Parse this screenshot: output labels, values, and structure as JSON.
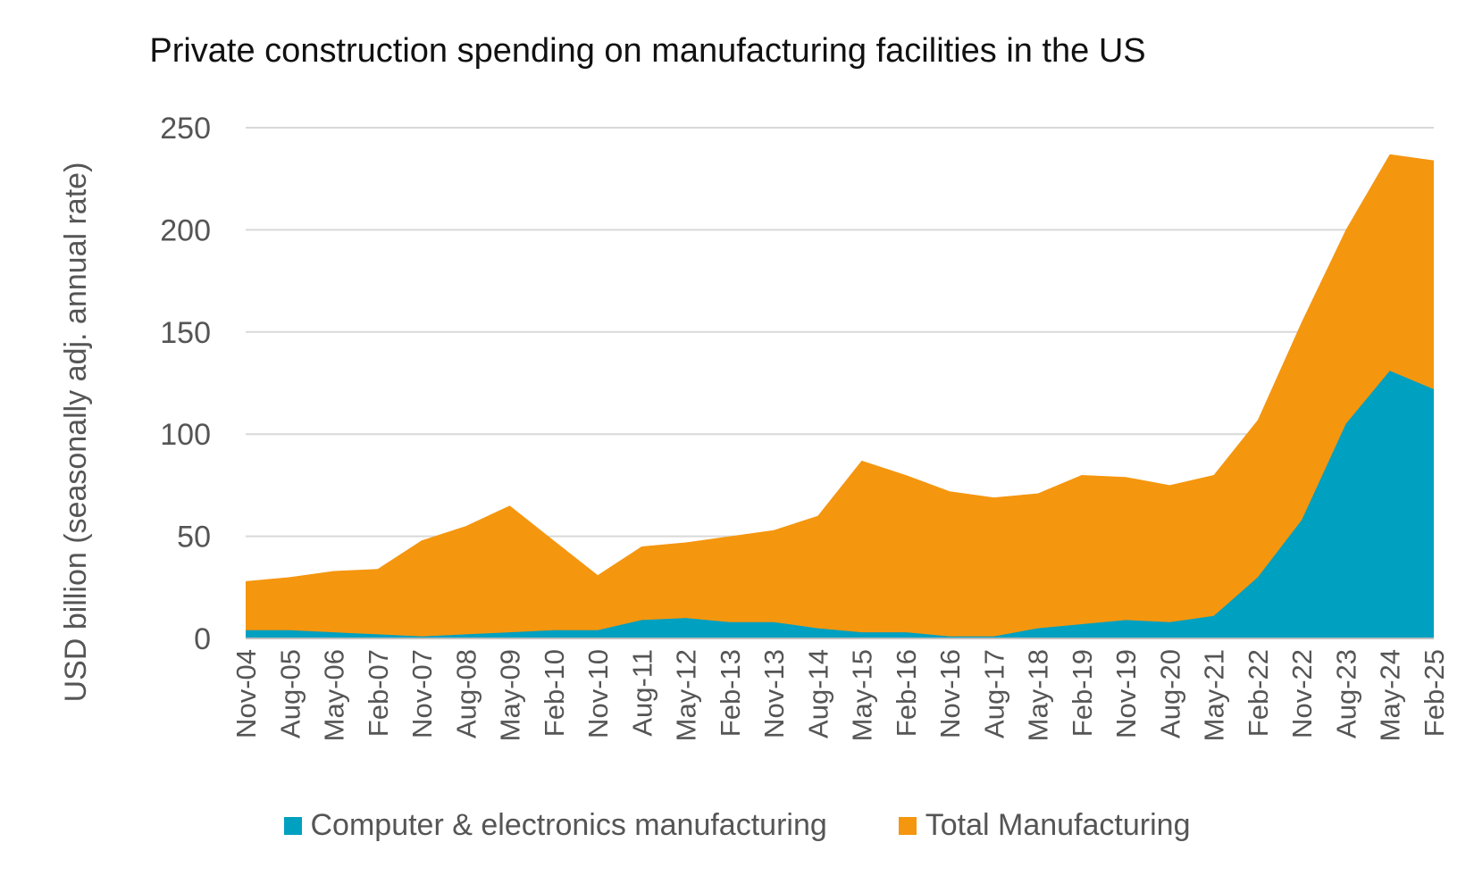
{
  "chart_data": {
    "type": "area",
    "title": "Private construction spending on manufacturing facilities in the US",
    "ylabel": "USD billion (seasonally adj. annual rate)",
    "xlabel": "",
    "ylim": [
      0,
      250
    ],
    "yticks": [
      "0",
      "50",
      "100",
      "150",
      "200",
      "250"
    ],
    "xticks": [
      "Nov-04",
      "Aug-05",
      "May-06",
      "Feb-07",
      "Nov-07",
      "Aug-08",
      "May-09",
      "Feb-10",
      "Nov-10",
      "Aug-11",
      "May-12",
      "Feb-13",
      "Nov-13",
      "Aug-14",
      "May-15",
      "Feb-16",
      "Nov-16",
      "Aug-17",
      "May-18",
      "Feb-19",
      "Nov-19",
      "Aug-20",
      "May-21",
      "Feb-22",
      "Nov-22",
      "Aug-23",
      "May-24",
      "Feb-25"
    ],
    "grid": true,
    "legend_position": "bottom",
    "series": [
      {
        "name": "Computer & electronics manufacturing",
        "color": "#00a0c0",
        "values": [
          4,
          4,
          3,
          2,
          1,
          2,
          3,
          4,
          4,
          9,
          10,
          8,
          8,
          5,
          3,
          3,
          1,
          1,
          5,
          7,
          9,
          8,
          11,
          30,
          58,
          105,
          131,
          122
        ]
      },
      {
        "name": "Total Manufacturing",
        "color": "#f5960f",
        "values": [
          28,
          30,
          33,
          34,
          48,
          55,
          65,
          48,
          31,
          45,
          47,
          50,
          53,
          60,
          87,
          80,
          72,
          69,
          71,
          80,
          79,
          75,
          80,
          107,
          155,
          200,
          237,
          234
        ]
      }
    ]
  }
}
